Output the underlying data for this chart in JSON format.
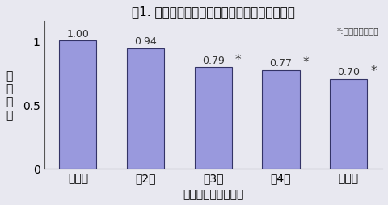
{
  "title": "図1. 総カルシウム摂取量と脳卒中発症との関係",
  "categories": [
    "最少群",
    "第2群",
    "第3群",
    "第4群",
    "最大群"
  ],
  "values": [
    1.0,
    0.94,
    0.79,
    0.77,
    0.7
  ],
  "xlabel": "総カルシウム摂取量",
  "ylabel": "リ\nス\nク\n比",
  "ylim": [
    0,
    1.15
  ],
  "yticks": [
    0,
    0.5,
    1
  ],
  "bar_color": "#9999dd",
  "bar_edge_color": "#333366",
  "significance": [
    false,
    false,
    true,
    true,
    true
  ],
  "significance_label": "*:統計学的に有意",
  "background_color": "#e8e8f0",
  "title_fontsize": 11,
  "label_fontsize": 10,
  "value_fontsize": 9,
  "bar_width": 0.55
}
